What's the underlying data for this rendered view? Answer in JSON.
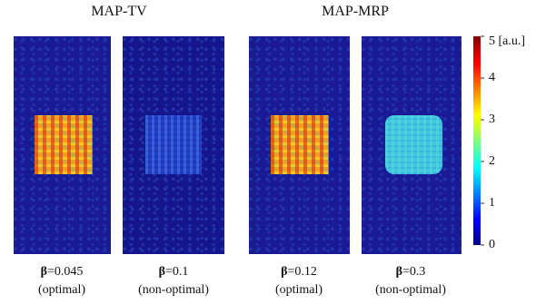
{
  "headers": [
    "MAP-TV",
    "MAP-MRP"
  ],
  "panels": [
    {
      "symbol": "β",
      "value": "=0.045",
      "note": "(optimal)"
    },
    {
      "symbol": "β",
      "value": "=0.1",
      "note": "(non-optimal)"
    },
    {
      "symbol": "β",
      "value": "=0.12",
      "note": "(optimal)"
    },
    {
      "symbol": "β",
      "value": "=0.3",
      "note": "(non-optimal)"
    }
  ],
  "colorbar": {
    "clim": [
      0,
      5
    ],
    "ticks": [
      0,
      1,
      2,
      3,
      4,
      {
        "value": 5,
        "label": "5 [a.u.]"
      }
    ]
  }
}
